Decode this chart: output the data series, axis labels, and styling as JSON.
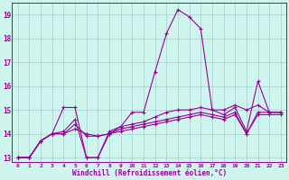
{
  "bg_color": "#cef5ee",
  "grid_color": "#aacccc",
  "line_color": "#990099",
  "x_values": [
    0,
    1,
    2,
    3,
    4,
    5,
    6,
    7,
    8,
    9,
    10,
    11,
    12,
    13,
    14,
    15,
    16,
    17,
    18,
    19,
    20,
    21,
    22,
    23
  ],
  "series1": [
    13.0,
    13.0,
    13.7,
    14.0,
    15.1,
    15.1,
    13.0,
    13.0,
    14.0,
    14.3,
    14.9,
    14.9,
    16.6,
    18.2,
    19.2,
    18.9,
    18.4,
    15.0,
    14.8,
    15.1,
    14.1,
    16.2,
    14.9,
    14.9
  ],
  "series2": [
    13.0,
    13.0,
    13.7,
    14.0,
    14.1,
    14.6,
    13.0,
    13.0,
    14.1,
    14.3,
    14.4,
    14.5,
    14.7,
    14.9,
    15.0,
    15.0,
    15.1,
    15.0,
    15.0,
    15.2,
    15.0,
    15.2,
    14.9,
    14.9
  ],
  "series3": [
    13.0,
    13.0,
    13.7,
    14.0,
    14.0,
    14.4,
    13.9,
    13.9,
    14.0,
    14.2,
    14.3,
    14.4,
    14.5,
    14.6,
    14.7,
    14.8,
    14.9,
    14.8,
    14.7,
    14.9,
    14.0,
    14.9,
    14.9,
    14.9
  ],
  "series4": [
    13.0,
    13.0,
    13.7,
    14.0,
    14.0,
    14.2,
    14.0,
    13.9,
    14.0,
    14.1,
    14.2,
    14.3,
    14.4,
    14.5,
    14.6,
    14.7,
    14.8,
    14.7,
    14.6,
    14.8,
    14.0,
    14.8,
    14.8,
    14.8
  ],
  "ylim": [
    12.8,
    19.5
  ],
  "yticks": [
    13,
    14,
    15,
    16,
    17,
    18,
    19
  ],
  "xlabel": "Windchill (Refroidissement éolien,°C)",
  "label_color": "#990099",
  "tick_color": "#990099"
}
